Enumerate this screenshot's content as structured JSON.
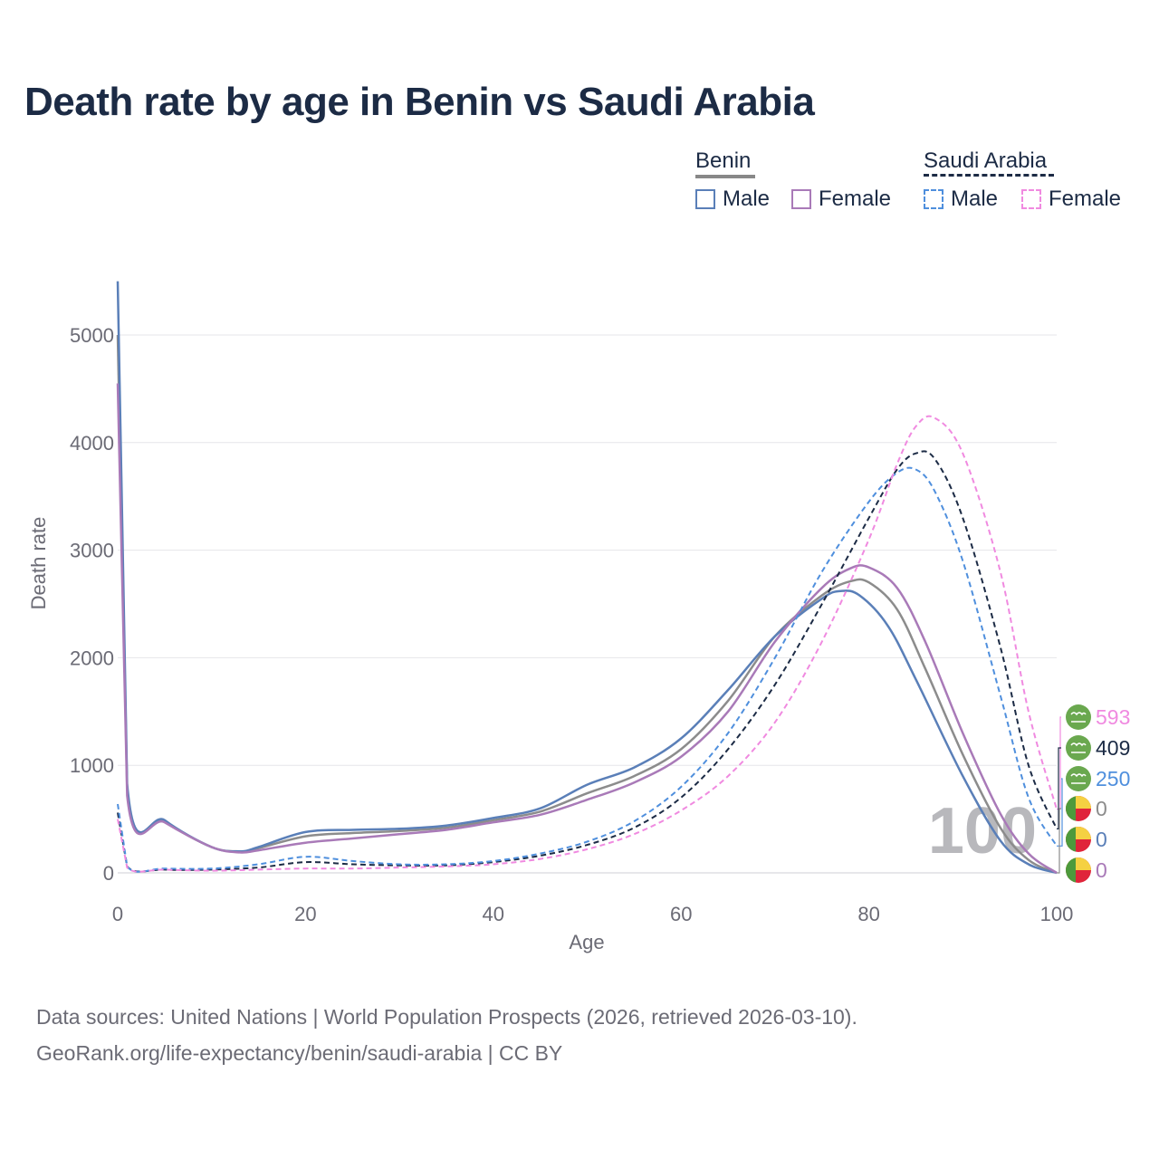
{
  "title": "Death rate by age in Benin vs Saudi Arabia",
  "legend": {
    "groups": [
      {
        "label": "Benin",
        "line_style": "solid",
        "underline_color": "#888888",
        "items": [
          {
            "label": "Male",
            "color": "#5a7fb8"
          },
          {
            "label": "Female",
            "color": "#a97ab8"
          }
        ]
      },
      {
        "label": "Saudi Arabia",
        "line_style": "dashed",
        "underline_color": "#1c2b45",
        "items": [
          {
            "label": "Male",
            "color": "#4f8fdd"
          },
          {
            "label": "Female",
            "color": "#f08ae0"
          }
        ]
      }
    ]
  },
  "chart_data": {
    "type": "line",
    "xlabel": "Age",
    "ylabel": "Death rate",
    "xlim": [
      0,
      100
    ],
    "ylim": [
      0,
      5500
    ],
    "x_ticks": [
      0,
      20,
      40,
      60,
      80,
      100
    ],
    "y_ticks": [
      0,
      1000,
      2000,
      3000,
      4000,
      5000
    ],
    "grid": true,
    "watermark_age": "100",
    "series": [
      {
        "name": "Benin Total",
        "country": "Benin",
        "color": "#8c8c8c",
        "dash": false,
        "points": [
          [
            0,
            5000
          ],
          [
            1,
            780
          ],
          [
            5,
            480
          ],
          [
            10,
            240
          ],
          [
            13,
            200
          ],
          [
            15,
            230
          ],
          [
            20,
            340
          ],
          [
            25,
            370
          ],
          [
            30,
            390
          ],
          [
            35,
            420
          ],
          [
            40,
            490
          ],
          [
            45,
            570
          ],
          [
            50,
            740
          ],
          [
            55,
            900
          ],
          [
            60,
            1150
          ],
          [
            65,
            1600
          ],
          [
            70,
            2200
          ],
          [
            75,
            2580
          ],
          [
            78,
            2710
          ],
          [
            80,
            2700
          ],
          [
            83,
            2450
          ],
          [
            86,
            1900
          ],
          [
            90,
            1100
          ],
          [
            94,
            420
          ],
          [
            97,
            120
          ],
          [
            100,
            0
          ]
        ],
        "end_label": "0",
        "end_flag": "benin"
      },
      {
        "name": "Benin Male",
        "country": "Benin",
        "color": "#5a7fb8",
        "dash": false,
        "points": [
          [
            0,
            5500
          ],
          [
            1,
            830
          ],
          [
            5,
            490
          ],
          [
            10,
            240
          ],
          [
            13,
            200
          ],
          [
            15,
            240
          ],
          [
            20,
            380
          ],
          [
            25,
            400
          ],
          [
            30,
            410
          ],
          [
            35,
            440
          ],
          [
            40,
            510
          ],
          [
            45,
            600
          ],
          [
            50,
            820
          ],
          [
            55,
            980
          ],
          [
            60,
            1250
          ],
          [
            65,
            1700
          ],
          [
            70,
            2200
          ],
          [
            75,
            2550
          ],
          [
            77,
            2620
          ],
          [
            79,
            2580
          ],
          [
            82,
            2300
          ],
          [
            85,
            1800
          ],
          [
            90,
            900
          ],
          [
            94,
            300
          ],
          [
            97,
            80
          ],
          [
            100,
            0
          ]
        ],
        "end_label": "0",
        "end_flag": "benin"
      },
      {
        "name": "Benin Female",
        "country": "Benin",
        "color": "#a97ab8",
        "dash": false,
        "points": [
          [
            0,
            4550
          ],
          [
            1,
            720
          ],
          [
            5,
            470
          ],
          [
            10,
            240
          ],
          [
            13,
            190
          ],
          [
            15,
            210
          ],
          [
            20,
            280
          ],
          [
            25,
            320
          ],
          [
            30,
            360
          ],
          [
            35,
            400
          ],
          [
            40,
            470
          ],
          [
            45,
            540
          ],
          [
            50,
            680
          ],
          [
            55,
            840
          ],
          [
            60,
            1080
          ],
          [
            65,
            1500
          ],
          [
            70,
            2150
          ],
          [
            75,
            2650
          ],
          [
            78,
            2830
          ],
          [
            80,
            2840
          ],
          [
            83,
            2650
          ],
          [
            86,
            2150
          ],
          [
            90,
            1300
          ],
          [
            94,
            550
          ],
          [
            97,
            180
          ],
          [
            100,
            0
          ]
        ],
        "end_label": "0",
        "end_flag": "benin"
      },
      {
        "name": "Saudi Arabia Total",
        "country": "Saudi Arabia",
        "color": "#1c2b45",
        "dash": true,
        "points": [
          [
            0,
            560
          ],
          [
            1,
            60
          ],
          [
            5,
            30
          ],
          [
            10,
            30
          ],
          [
            15,
            50
          ],
          [
            20,
            100
          ],
          [
            25,
            80
          ],
          [
            30,
            70
          ],
          [
            35,
            70
          ],
          [
            40,
            100
          ],
          [
            45,
            160
          ],
          [
            50,
            260
          ],
          [
            55,
            420
          ],
          [
            60,
            700
          ],
          [
            65,
            1150
          ],
          [
            70,
            1750
          ],
          [
            75,
            2500
          ],
          [
            80,
            3300
          ],
          [
            83,
            3750
          ],
          [
            85,
            3900
          ],
          [
            87,
            3850
          ],
          [
            90,
            3300
          ],
          [
            94,
            2100
          ],
          [
            97,
            1000
          ],
          [
            100,
            409
          ]
        ],
        "end_label": "409",
        "end_flag": "saudi-arabia"
      },
      {
        "name": "Saudi Arabia Male",
        "country": "Saudi Arabia",
        "color": "#4f8fdd",
        "dash": true,
        "points": [
          [
            0,
            640
          ],
          [
            1,
            60
          ],
          [
            5,
            40
          ],
          [
            10,
            40
          ],
          [
            15,
            80
          ],
          [
            20,
            150
          ],
          [
            25,
            110
          ],
          [
            30,
            80
          ],
          [
            35,
            80
          ],
          [
            40,
            110
          ],
          [
            45,
            180
          ],
          [
            50,
            290
          ],
          [
            55,
            480
          ],
          [
            60,
            800
          ],
          [
            65,
            1300
          ],
          [
            70,
            2000
          ],
          [
            75,
            2800
          ],
          [
            80,
            3450
          ],
          [
            83,
            3720
          ],
          [
            85,
            3750
          ],
          [
            87,
            3550
          ],
          [
            90,
            2900
          ],
          [
            94,
            1650
          ],
          [
            97,
            700
          ],
          [
            100,
            250
          ]
        ],
        "end_label": "250",
        "end_flag": "saudi-arabia"
      },
      {
        "name": "Saudi Arabia Female",
        "country": "Saudi Arabia",
        "color": "#f08ae0",
        "dash": true,
        "points": [
          [
            0,
            500
          ],
          [
            1,
            50
          ],
          [
            5,
            30
          ],
          [
            10,
            20
          ],
          [
            15,
            30
          ],
          [
            20,
            40
          ],
          [
            25,
            40
          ],
          [
            30,
            50
          ],
          [
            35,
            60
          ],
          [
            40,
            80
          ],
          [
            45,
            130
          ],
          [
            50,
            220
          ],
          [
            55,
            360
          ],
          [
            60,
            580
          ],
          [
            65,
            900
          ],
          [
            70,
            1400
          ],
          [
            75,
            2150
          ],
          [
            80,
            3100
          ],
          [
            83,
            3800
          ],
          [
            85,
            4150
          ],
          [
            87,
            4230
          ],
          [
            90,
            3900
          ],
          [
            94,
            2800
          ],
          [
            97,
            1500
          ],
          [
            100,
            593
          ]
        ],
        "end_label": "593",
        "end_flag": "saudi-arabia"
      }
    ]
  },
  "flags": {
    "benin": {
      "green": "#4d9a3c",
      "yellow": "#f5d142",
      "red": "#e0243a"
    },
    "saudi-arabia": {
      "green": "#6aa84f",
      "mark": "#ffffff"
    }
  },
  "footer": {
    "line1": "Data sources: United Nations | World Population Prospects (2026, retrieved 2026-03-10).",
    "line2": "GeoRank.org/life-expectancy/benin/saudi-arabia | CC BY"
  }
}
